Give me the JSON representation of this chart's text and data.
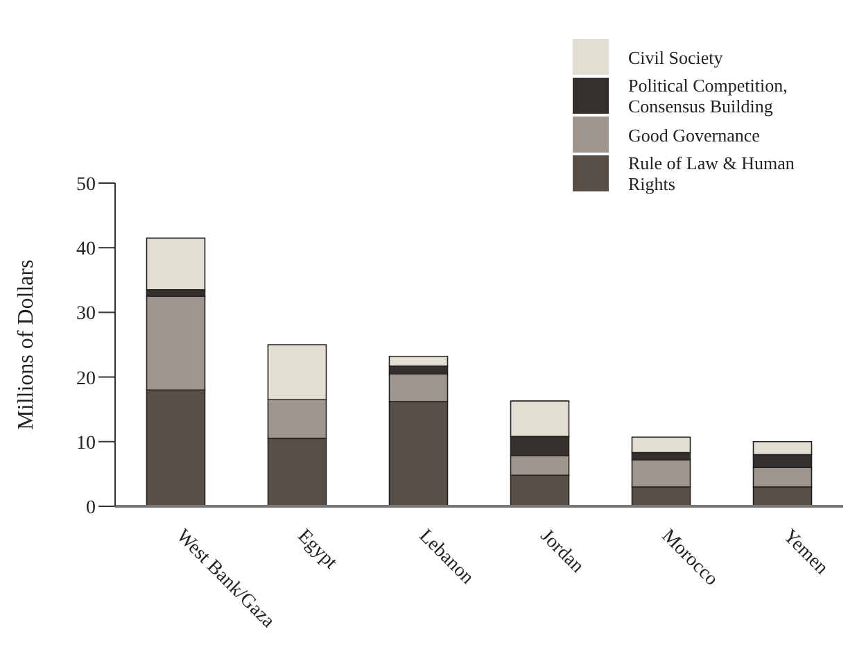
{
  "chart_data": {
    "type": "bar",
    "stacked": true,
    "ylabel": "Millions of Dollars",
    "categories": [
      "West Bank/Gaza",
      "Egypt",
      "Lebanon",
      "Jordan",
      "Morocco",
      "Yemen"
    ],
    "series": [
      {
        "name": "Rule of Law & Human Rights",
        "color": "#574e47",
        "values": [
          18,
          10.5,
          16.2,
          4.8,
          3,
          3
        ]
      },
      {
        "name": "Good Governance",
        "color": "#9e958e",
        "values": [
          14.5,
          6,
          4.3,
          3,
          4.2,
          3
        ]
      },
      {
        "name": "Political Competition, Consensus Building",
        "color": "#35302b",
        "values": [
          1,
          0,
          1.2,
          3,
          1.1,
          2
        ]
      },
      {
        "name": "Civil Society",
        "color": "#e2dfd2",
        "values": [
          8,
          8.5,
          1.5,
          5.5,
          2.4,
          2
        ]
      }
    ],
    "ylim": [
      0,
      50
    ],
    "yticks": [
      0,
      10,
      20,
      30,
      40,
      50
    ],
    "legend": "top right"
  }
}
